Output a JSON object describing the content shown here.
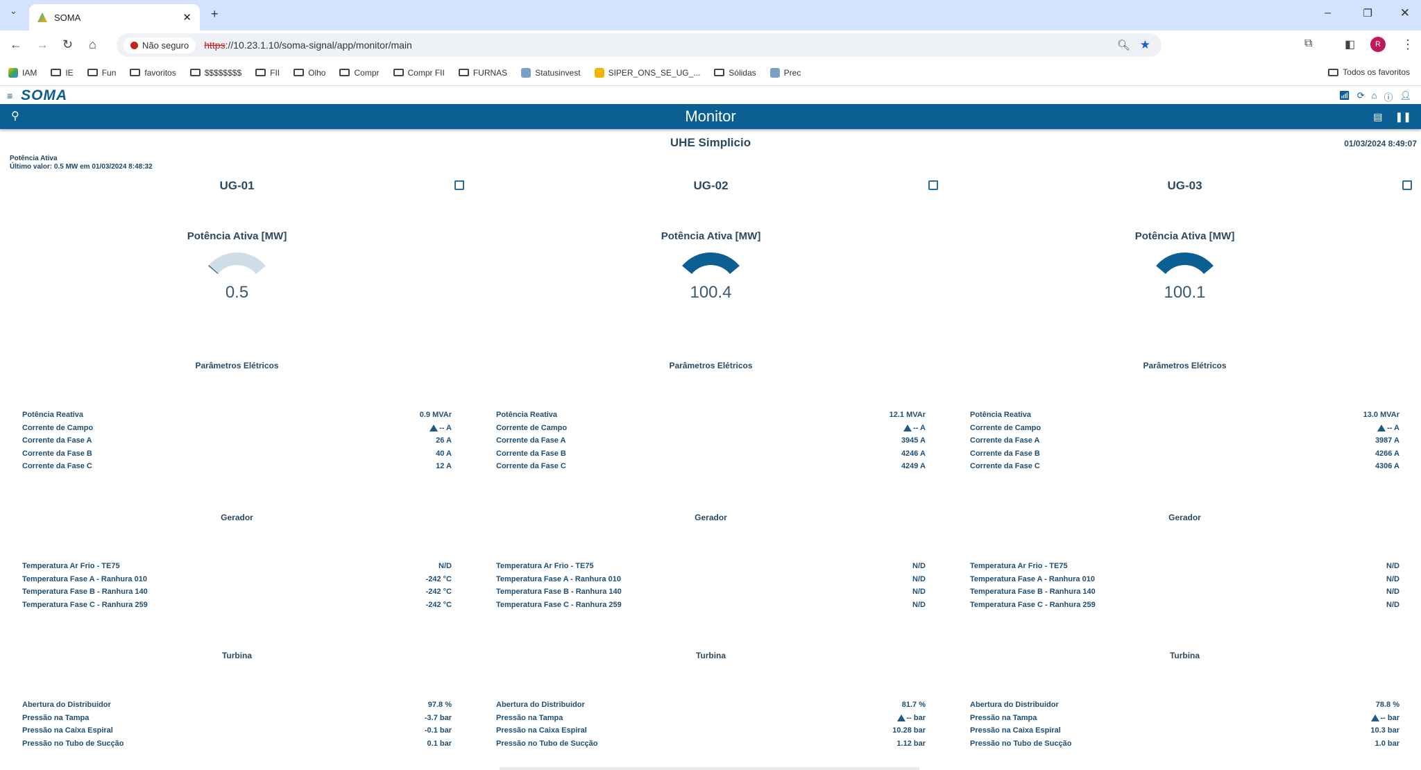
{
  "browser": {
    "tab_title": "SOMA",
    "insecure_label": "Não seguro",
    "url_scheme": "https",
    "url_rest": "://10.23.1.10/soma-signal/app/monitor/main",
    "bookmarks": [
      {
        "label": "IAM",
        "icon": "drive"
      },
      {
        "label": "IE",
        "icon": "folder"
      },
      {
        "label": "Fun",
        "icon": "folder"
      },
      {
        "label": "favoritos",
        "icon": "folder"
      },
      {
        "label": "$$$$$$$$",
        "icon": "folder"
      },
      {
        "label": "FII",
        "icon": "folder"
      },
      {
        "label": "Olho",
        "icon": "folder"
      },
      {
        "label": "Compr",
        "icon": "folder"
      },
      {
        "label": "Compr FII",
        "icon": "folder"
      },
      {
        "label": "FURNAS",
        "icon": "folder"
      },
      {
        "label": "Statusinvest",
        "icon": "site"
      },
      {
        "label": "SIPER_ONS_SE_UG_...",
        "icon": "site"
      },
      {
        "label": "Sólidas",
        "icon": "folder"
      },
      {
        "label": "Prec",
        "icon": "site"
      }
    ],
    "all_favorites": "Todos os favoritos",
    "profile_initial": "R"
  },
  "app": {
    "logo": "SOMA",
    "page_title": "Monitor",
    "plant": "UHE Simplicio",
    "clock": "01/03/2024 8:49:07",
    "tooltip": {
      "title": "Potência Ativa",
      "detail": "Último valor: 0.5 MW em 01/03/2024 8:48:32"
    },
    "accent": "#0b5f93"
  },
  "units": [
    {
      "name": "UG-01",
      "gauge_title": "Potência Ativa [MW]",
      "gauge_value": "0.5",
      "sections": [
        {
          "title": "Parâmetros Elétricos",
          "rows": [
            {
              "label": "Potência Reativa",
              "value": "0.9 MVAr"
            },
            {
              "label": "Corrente de Campo",
              "value": "-- A",
              "alarm": true
            },
            {
              "label": "Corrente da Fase A",
              "value": "26 A"
            },
            {
              "label": "Corrente da Fase B",
              "value": "40 A"
            },
            {
              "label": "Corrente da Fase C",
              "value": "12 A"
            }
          ]
        },
        {
          "title": "Gerador",
          "rows": [
            {
              "label": "Temperatura Ar Frio - TE75",
              "value": "N/D"
            },
            {
              "label": "Temperatura Fase A - Ranhura 010",
              "value": "-242 °C"
            },
            {
              "label": "Temperatura Fase B - Ranhura 140",
              "value": "-242 °C"
            },
            {
              "label": "Temperatura Fase C - Ranhura 259",
              "value": "-242 °C"
            }
          ]
        },
        {
          "title": "Turbina",
          "rows": [
            {
              "label": "Abertura do Distribuidor",
              "value": "97.8 %"
            },
            {
              "label": "Pressão na Tampa",
              "value": "-3.7 bar"
            },
            {
              "label": "Pressão na Caixa Espiral",
              "value": "-0.1 bar"
            },
            {
              "label": "Pressão no Tubo de Sucção",
              "value": "0.1 bar"
            }
          ]
        }
      ]
    },
    {
      "name": "UG-02",
      "gauge_title": "Potência Ativa [MW]",
      "gauge_value": "100.4",
      "sections": [
        {
          "title": "Parâmetros Elétricos",
          "rows": [
            {
              "label": "Potência Reativa",
              "value": "12.1 MVAr"
            },
            {
              "label": "Corrente de Campo",
              "value": "-- A",
              "alarm": true
            },
            {
              "label": "Corrente da Fase A",
              "value": "3945 A"
            },
            {
              "label": "Corrente da Fase B",
              "value": "4246 A"
            },
            {
              "label": "Corrente da Fase C",
              "value": "4249 A"
            }
          ]
        },
        {
          "title": "Gerador",
          "rows": [
            {
              "label": "Temperatura Ar Frio - TE75",
              "value": "N/D"
            },
            {
              "label": "Temperatura Fase A - Ranhura 010",
              "value": "N/D"
            },
            {
              "label": "Temperatura Fase B - Ranhura 140",
              "value": "N/D"
            },
            {
              "label": "Temperatura Fase C - Ranhura 259",
              "value": "N/D"
            }
          ]
        },
        {
          "title": "Turbina",
          "rows": [
            {
              "label": "Abertura do Distribuidor",
              "value": "81.7 %"
            },
            {
              "label": "Pressão na Tampa",
              "value": "-- bar",
              "alarm": true
            },
            {
              "label": "Pressão na Caixa Espiral",
              "value": "10.28 bar"
            },
            {
              "label": "Pressão no Tubo de Sucção",
              "value": "1.12 bar"
            }
          ]
        }
      ]
    },
    {
      "name": "UG-03",
      "gauge_title": "Potência Ativa [MW]",
      "gauge_value": "100.1",
      "sections": [
        {
          "title": "Parâmetros Elétricos",
          "rows": [
            {
              "label": "Potência Reativa",
              "value": "13.0 MVAr"
            },
            {
              "label": "Corrente de Campo",
              "value": "-- A",
              "alarm": true
            },
            {
              "label": "Corrente da Fase A",
              "value": "3987 A"
            },
            {
              "label": "Corrente da Fase B",
              "value": "4266 A"
            },
            {
              "label": "Corrente da Fase C",
              "value": "4306 A"
            }
          ]
        },
        {
          "title": "Gerador",
          "rows": [
            {
              "label": "Temperatura Ar Frio - TE75",
              "value": "N/D"
            },
            {
              "label": "Temperatura Fase A - Ranhura 010",
              "value": "N/D"
            },
            {
              "label": "Temperatura Fase B - Ranhura 140",
              "value": "N/D"
            },
            {
              "label": "Temperatura Fase C - Ranhura 259",
              "value": "N/D"
            }
          ]
        },
        {
          "title": "Turbina",
          "rows": [
            {
              "label": "Abertura do Distribuidor",
              "value": "78.8 %"
            },
            {
              "label": "Pressão na Tampa",
              "value": "-- bar",
              "alarm": true
            },
            {
              "label": "Pressão na Caixa Espiral",
              "value": "10.3 bar"
            },
            {
              "label": "Pressão no Tubo de Sucção",
              "value": "1.0 bar"
            }
          ]
        }
      ]
    }
  ]
}
